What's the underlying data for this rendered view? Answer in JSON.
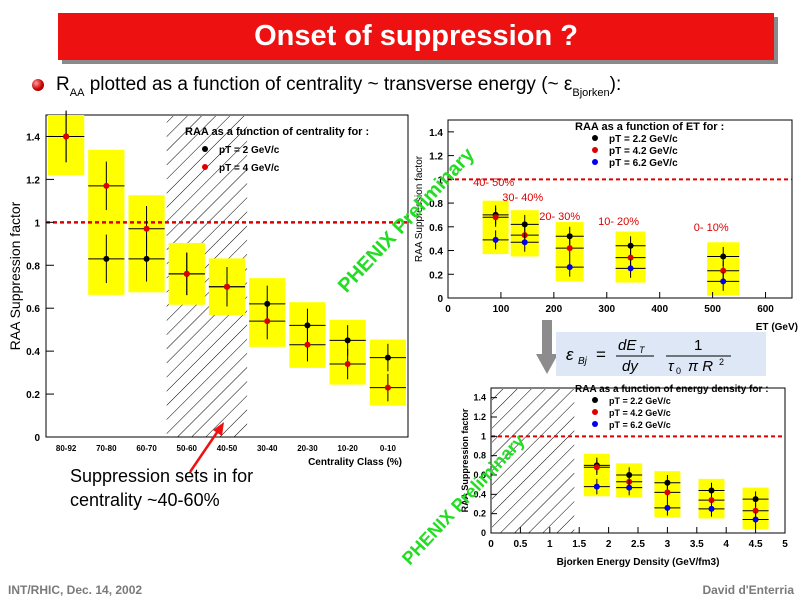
{
  "title": "Onset of suppression ?",
  "subtitle": {
    "r": "R",
    "r_sub": "AA",
    "mid": " plotted as a function of centrality ~ transverse energy (~ ε",
    "eps_sub": "Bjorken",
    "end": "):"
  },
  "annotation": "Suppression sets in for\ncentrality ~40-60%",
  "footer_left": "INT/RHIC, Dec. 14, 2002",
  "footer_right": "David d'Enterria",
  "formula": "εBj = dET/dy · 1/(τ0 π R²)",
  "preliminary_label": "PHENIX Preliminary",
  "colors": {
    "title_bg": "#ee1111",
    "band": "#ffff00",
    "red_dash": "#dd0000",
    "prelim": "#22dd22"
  },
  "chart_data": [
    {
      "type": "scatter",
      "title": "RAA as a function of centrality for :",
      "xlabel": "Centrality Class (%)",
      "ylabel": "RAA Suppression factor",
      "ylim": [
        0,
        1.5
      ],
      "categories": [
        "80-92",
        "70-80",
        "60-70",
        "50-60",
        "40-50",
        "30-40",
        "20-30",
        "10-20",
        "0-10"
      ],
      "series": [
        {
          "name": "pT = 2 GeV/c",
          "color": "#000000",
          "values": [
            1.4,
            0.83,
            0.83,
            0.76,
            0.7,
            0.62,
            0.52,
            0.45,
            0.37
          ]
        },
        {
          "name": "pT = 4 GeV/c",
          "color": "#dd0000",
          "values": [
            1.4,
            1.17,
            0.97,
            0.76,
            0.7,
            0.54,
            0.43,
            0.34,
            0.23
          ]
        }
      ],
      "hatched_region": "50-60 to 40-50",
      "reference_line": 1,
      "ytick_labels": [
        "0",
        "0.2",
        "0.4",
        "0.6",
        "0.8",
        "1",
        "1.2",
        "1.4"
      ]
    },
    {
      "type": "scatter",
      "title": "RAA as a function of ET for :",
      "xlabel": "ET (GeV)",
      "ylabel": "RAA Suppression factor",
      "xlim": [
        0,
        650
      ],
      "ylim": [
        0,
        1.5
      ],
      "xtick_labels": [
        "0",
        "100",
        "200",
        "300",
        "400",
        "500",
        "600"
      ],
      "ytick_labels": [
        "0",
        "0.2",
        "0.4",
        "0.6",
        "0.8",
        "1",
        "1.2",
        "1.4"
      ],
      "x": [
        90,
        145,
        230,
        345,
        520
      ],
      "point_labels": [
        "40- 50%",
        "30- 40%",
        "20- 30%",
        "10- 20%",
        "0- 10%"
      ],
      "series": [
        {
          "name": "pT = 2.2 GeV/c",
          "color": "#000000",
          "values": [
            0.7,
            0.62,
            0.52,
            0.44,
            0.35
          ]
        },
        {
          "name": "pT = 4.2 GeV/c",
          "color": "#dd0000",
          "values": [
            0.68,
            0.53,
            0.42,
            0.34,
            0.23
          ]
        },
        {
          "name": "pT = 6.2 GeV/c",
          "color": "#0000ee",
          "values": [
            0.49,
            0.47,
            0.26,
            0.25,
            0.14
          ]
        }
      ],
      "reference_line": 1
    },
    {
      "type": "scatter",
      "title": "RAA as a function of energy density for :",
      "xlabel": "Bjorken Energy Density (GeV/fm3)",
      "ylabel": "RAA Suppression factor",
      "xlim": [
        0,
        5
      ],
      "ylim": [
        0,
        1.5
      ],
      "xtick_labels": [
        "0",
        "0.5",
        "1",
        "1.5",
        "2",
        "2.5",
        "3",
        "3.5",
        "4",
        "4.5",
        "5"
      ],
      "ytick_labels": [
        "0",
        "0.2",
        "0.4",
        "0.6",
        "0.8",
        "1",
        "1.2",
        "1.4"
      ],
      "x": [
        1.8,
        2.35,
        3.0,
        3.75,
        4.5
      ],
      "series": [
        {
          "name": "pT = 2.2 GeV/c",
          "color": "#000000",
          "values": [
            0.7,
            0.6,
            0.52,
            0.44,
            0.35
          ]
        },
        {
          "name": "pT = 4.2 GeV/c",
          "color": "#dd0000",
          "values": [
            0.68,
            0.53,
            0.42,
            0.34,
            0.23
          ]
        },
        {
          "name": "pT = 6.2 GeV/c",
          "color": "#0000ee",
          "values": [
            0.48,
            0.47,
            0.26,
            0.25,
            0.14
          ]
        }
      ],
      "hatched_region": "0 to 1.4",
      "reference_line": 1
    }
  ]
}
